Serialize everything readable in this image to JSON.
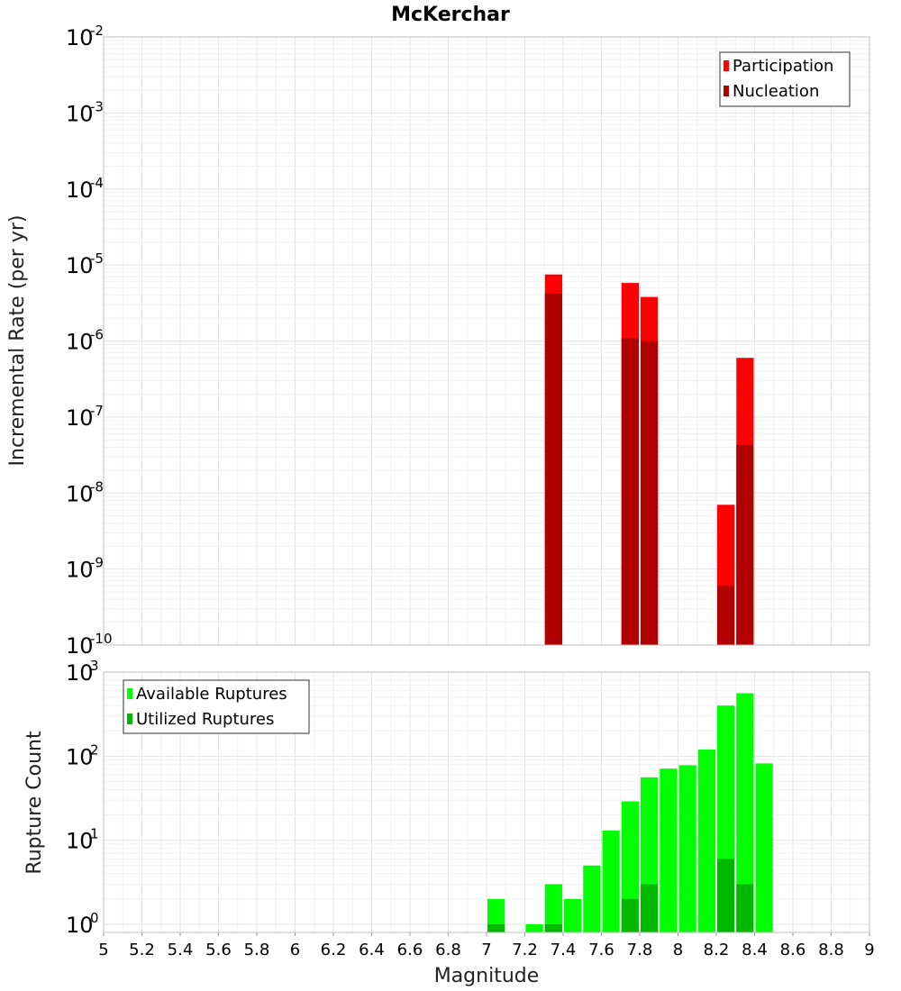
{
  "chart_data": [
    {
      "type": "bar",
      "scale": "log",
      "title": "McKerchar",
      "xlabel": "",
      "ylabel": "Incremental Rate (per yr)",
      "xlim": [
        5,
        9
      ],
      "ylim_exponents": [
        -10,
        -2
      ],
      "y_tick_base": "10",
      "y_tick_exponents": [
        "-10",
        "-9",
        "-8",
        "-7",
        "-6",
        "-5",
        "-4",
        "-3",
        "-2"
      ],
      "grid": true,
      "legend_position": "top-right",
      "bin_width": 0.1,
      "series": [
        {
          "name": "Participation",
          "color": "#ff0000",
          "x": [
            7.35,
            7.75,
            7.85,
            8.25,
            8.35
          ],
          "values": [
            7.5e-06,
            5.8e-06,
            3.8e-06,
            7e-09,
            6e-07
          ]
        },
        {
          "name": "Nucleation",
          "color": "#b00000",
          "x": [
            7.35,
            7.75,
            7.85,
            8.25,
            8.35
          ],
          "values": [
            4.2e-06,
            1.1e-06,
            1e-06,
            6e-10,
            4.3e-08
          ]
        }
      ]
    },
    {
      "type": "bar",
      "scale": "log",
      "title": "",
      "xlabel": "Magnitude",
      "ylabel": "Rupture Count",
      "xlim": [
        5,
        9
      ],
      "ylim": [
        0.8,
        1000
      ],
      "y_tick_base": "10",
      "y_tick_exponents": [
        "0",
        "1",
        "2",
        "3"
      ],
      "x_tick_labels": [
        "5",
        "5.2",
        "5.4",
        "5.6",
        "5.8",
        "6",
        "6.2",
        "6.4",
        "6.6",
        "6.8",
        "7",
        "7.2",
        "7.4",
        "7.6",
        "7.8",
        "8",
        "8.2",
        "8.4",
        "8.6",
        "8.8",
        "9"
      ],
      "grid": true,
      "legend_position": "top-left",
      "bin_width": 0.1,
      "series": [
        {
          "name": "Available Ruptures",
          "color": "#00ff00",
          "x": [
            7.05,
            7.25,
            7.35,
            7.45,
            7.55,
            7.65,
            7.75,
            7.85,
            7.95,
            8.05,
            8.15,
            8.25,
            8.35,
            8.45
          ],
          "values": [
            2,
            1,
            3,
            2,
            5,
            13,
            29,
            56,
            71,
            78,
            120,
            400,
            560,
            82
          ]
        },
        {
          "name": "Utilized Ruptures",
          "color": "#00b800",
          "x": [
            7.05,
            7.35,
            7.75,
            7.85,
            8.25,
            8.35
          ],
          "values": [
            1,
            1,
            2,
            3,
            6,
            3
          ]
        }
      ]
    }
  ]
}
